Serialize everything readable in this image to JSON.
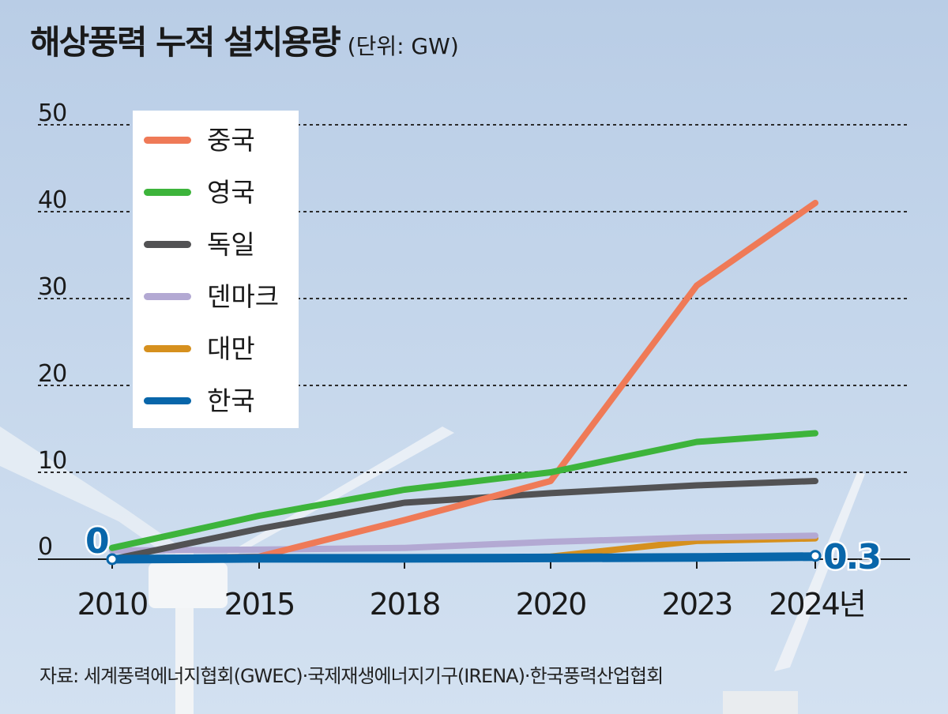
{
  "title": "해상풍력 누적 설치용량",
  "unit": "(단위: GW)",
  "source": "자료: 세계풍력에너지협회(GWEC)·국제재생에너지기구(IRENA)·한국풍력산업협회",
  "chart_data": {
    "type": "line",
    "title": "해상풍력 누적 설치용량",
    "ylabel": "",
    "xlabel": "",
    "ylim": [
      0,
      50
    ],
    "yticks": [
      "0",
      "10",
      "20",
      "30",
      "40",
      "50"
    ],
    "categories": [
      "2010",
      "2015",
      "2018",
      "2020",
      "2023",
      "2024년"
    ],
    "legend_position": "top-left",
    "grid": true,
    "series": [
      {
        "name": "중국",
        "color": "#ef7a57",
        "values": [
          0,
          0.3,
          4.5,
          9,
          31.5,
          41
        ]
      },
      {
        "name": "영국",
        "color": "#3db43b",
        "values": [
          1.3,
          5,
          8,
          10,
          13.5,
          14.5
        ]
      },
      {
        "name": "독일",
        "color": "#525254",
        "values": [
          0,
          3.5,
          6.5,
          7.6,
          8.5,
          9
        ]
      },
      {
        "name": "덴마크",
        "color": "#b3a9d3",
        "values": [
          1,
          1.1,
          1.3,
          2,
          2.5,
          2.7
        ]
      },
      {
        "name": "대만",
        "color": "#d6901e",
        "values": [
          0,
          0,
          0,
          0.3,
          2.1,
          2.4
        ]
      },
      {
        "name": "한국",
        "color": "#0866aa",
        "values": [
          0,
          0.1,
          0.1,
          0.15,
          0.2,
          0.3
        ]
      }
    ],
    "annotations": {
      "start": "0",
      "end": "0.3"
    }
  }
}
